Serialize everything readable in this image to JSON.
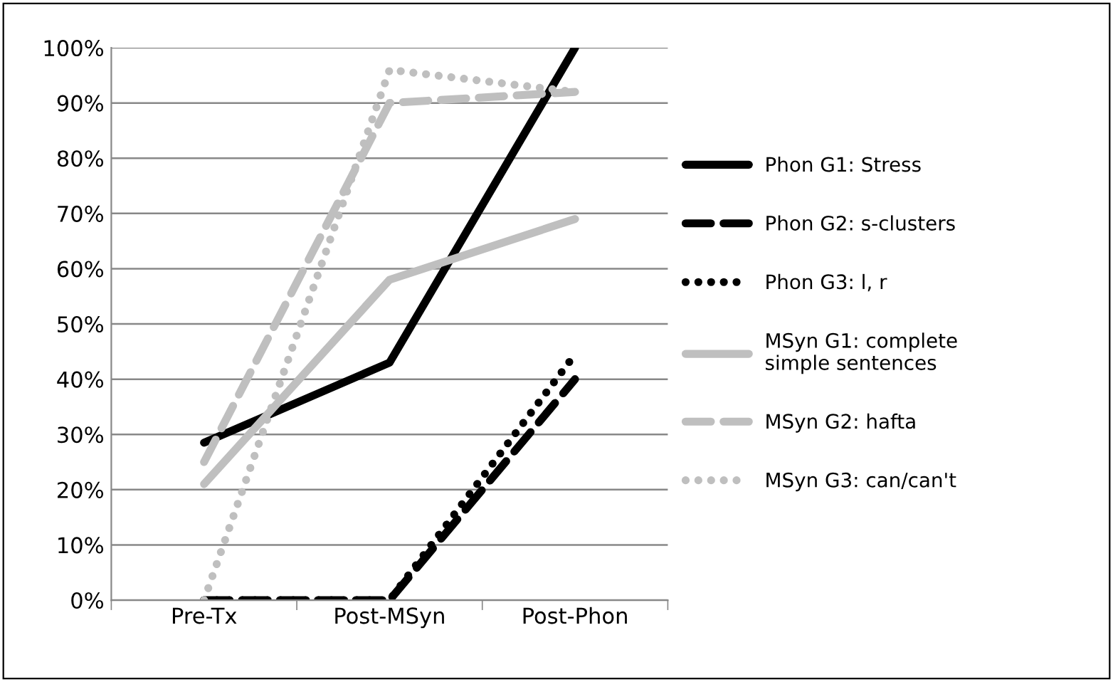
{
  "chart_data": {
    "type": "line",
    "categories": [
      "Pre-Tx",
      "Post-MSyn",
      "Post-Phon"
    ],
    "series": [
      {
        "name": "Phon G1: Stress",
        "color": "#000000",
        "line_style": "solid",
        "values": [
          28.5,
          43,
          100
        ]
      },
      {
        "name": "Phon G2: s-clusters",
        "color": "#000000",
        "line_style": "dashed",
        "values": [
          0,
          0,
          40
        ]
      },
      {
        "name": "Phon G3: l, r",
        "color": "#000000",
        "line_style": "dotted",
        "values": [
          0,
          0,
          44.5
        ]
      },
      {
        "name": "MSyn G1: complete simple sentences",
        "color": "#bfbfbf",
        "line_style": "solid",
        "values": [
          21,
          58,
          69
        ]
      },
      {
        "name": "MSyn G2: hafta",
        "color": "#bfbfbf",
        "line_style": "dashed",
        "values": [
          25,
          90,
          92
        ]
      },
      {
        "name": "MSyn G3: can/can't",
        "color": "#bfbfbf",
        "line_style": "dotted",
        "values": [
          0,
          96,
          92
        ]
      }
    ],
    "ylim": [
      0,
      100
    ],
    "yticks": [
      {
        "value": 0,
        "label": "0%"
      },
      {
        "value": 10,
        "label": "10%"
      },
      {
        "value": 20,
        "label": "20%"
      },
      {
        "value": 30,
        "label": "30%"
      },
      {
        "value": 40,
        "label": "40%"
      },
      {
        "value": 50,
        "label": "50%"
      },
      {
        "value": 60,
        "label": "60%"
      },
      {
        "value": 70,
        "label": "70%"
      },
      {
        "value": 80,
        "label": "80%"
      },
      {
        "value": 90,
        "label": "90%"
      },
      {
        "value": 100,
        "label": "100%"
      }
    ],
    "grid": "y",
    "legend": "right"
  }
}
